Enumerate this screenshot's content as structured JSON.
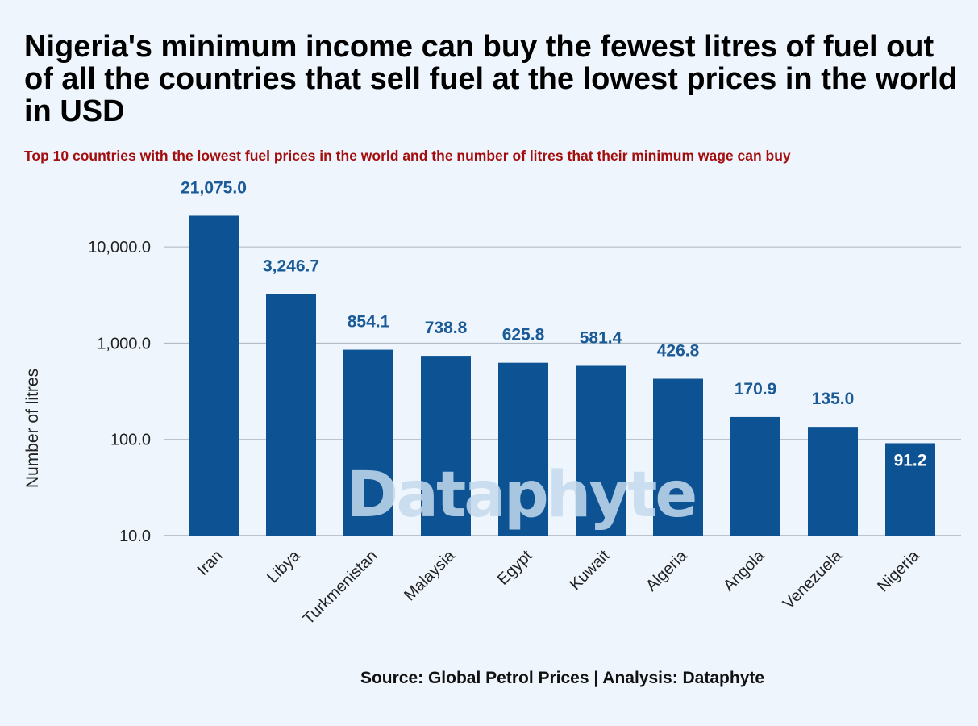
{
  "header": {
    "title": "Nigeria's minimum income can buy the fewest litres of fuel out of all the countries that sell fuel at the lowest prices in the world in USD",
    "subtitle": "Top 10 countries with the lowest fuel prices in the world and the number of litres that their minimum wage can buy"
  },
  "footer": {
    "source": "Source: Global Petrol Prices | Analysis: Dataphyte"
  },
  "watermark": "Dataphyte",
  "colors": {
    "bar": "#0d5293",
    "label_outside": "#1a5a97",
    "label_inside": "#ffffff",
    "grid": "#aab4bf",
    "subtitle": "#a30d0d"
  },
  "chart_data": {
    "type": "bar",
    "title": "Nigeria's minimum income can buy the fewest litres of fuel out of all the countries that sell fuel at the lowest prices in the world in USD",
    "subtitle": "Top 10 countries with the lowest fuel prices in the world and the number of litres that their minimum wage can buy",
    "xlabel": "",
    "ylabel": "Number of litres",
    "y_scale": "log",
    "ylim": [
      10,
      30000
    ],
    "yticks": [
      10,
      100,
      1000,
      10000
    ],
    "ytick_labels": [
      "10.0",
      "100.0",
      "1,000.0",
      "10,000.0"
    ],
    "grid": "horizontal",
    "legend": "none",
    "categories": [
      "Iran",
      "Libya",
      "Turkmenistan",
      "Malaysia",
      "Egypt",
      "Kuwait",
      "Algeria",
      "Angola",
      "Venezuela",
      "Nigeria"
    ],
    "values": [
      21075.0,
      3246.7,
      854.1,
      738.8,
      625.8,
      581.4,
      426.8,
      170.9,
      135.0,
      91.2
    ],
    "value_labels": [
      "21,075.0",
      "3,246.7",
      "854.1",
      "738.8",
      "625.8",
      "581.4",
      "426.8",
      "170.9",
      "135.0",
      "91.2"
    ],
    "label_inside": [
      false,
      false,
      false,
      false,
      false,
      false,
      false,
      false,
      false,
      true
    ]
  }
}
